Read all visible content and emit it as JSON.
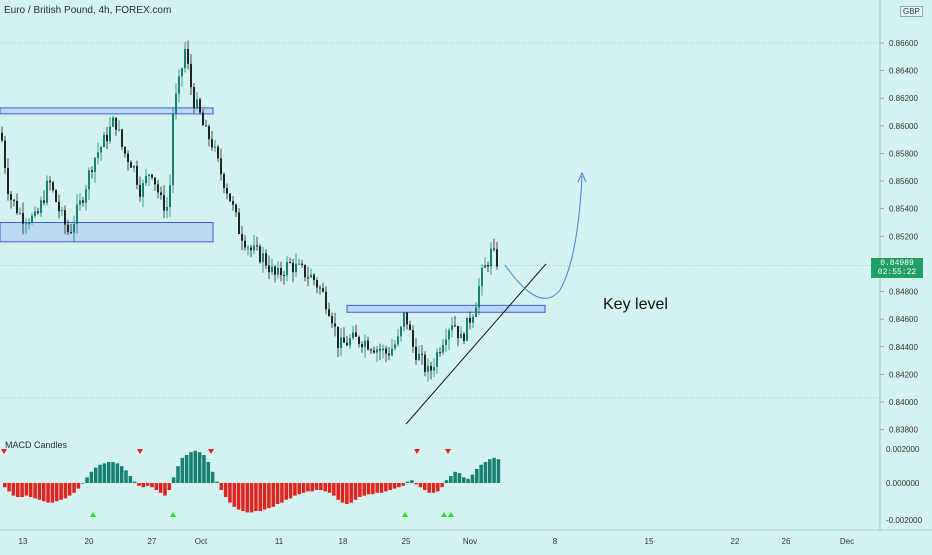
{
  "title": "Euro / British Pound, 4h, FOREX.com",
  "currency_badge": "GBP",
  "current_price": "0.84989",
  "countdown": "02:55:22",
  "annotation": "Key level",
  "indicator": {
    "name": "MACD Candles",
    "yticks": [
      "0.002000",
      "0.000000",
      "-0.002000"
    ]
  },
  "chart_data": {
    "type": "candlestick",
    "symbol": "EURGBP",
    "timeframe": "4h",
    "y_range": [
      0.8375,
      0.8676
    ],
    "y_ticks": [
      0.866,
      0.864,
      0.862,
      0.86,
      0.858,
      0.856,
      0.854,
      0.852,
      0.848,
      0.846,
      0.844,
      0.842,
      0.84,
      0.838
    ],
    "y_tick_labels": [
      "0.86600",
      "0.86400",
      "0.86200",
      "0.86000",
      "0.85800",
      "0.85600",
      "0.85400",
      "0.85200",
      "0.84800",
      "0.84600",
      "0.84400",
      "0.84200",
      "0.84000",
      "0.83800"
    ],
    "x_tick_labels": [
      "13",
      "20",
      "27",
      "Oct",
      "11",
      "18",
      "25",
      "Nov",
      "8",
      "15",
      "22",
      "26",
      "Dec"
    ],
    "price_path": [
      [
        0,
        0.8595
      ],
      [
        8,
        0.855
      ],
      [
        20,
        0.8535
      ],
      [
        35,
        0.8532
      ],
      [
        48,
        0.856
      ],
      [
        60,
        0.8535
      ],
      [
        68,
        0.8522
      ],
      [
        80,
        0.8545
      ],
      [
        92,
        0.8575
      ],
      [
        104,
        0.859
      ],
      [
        114,
        0.8605
      ],
      [
        122,
        0.8582
      ],
      [
        132,
        0.8572
      ],
      [
        140,
        0.8552
      ],
      [
        150,
        0.857
      ],
      [
        160,
        0.8545
      ],
      [
        168,
        0.854
      ],
      [
        172,
        0.861
      ],
      [
        178,
        0.863
      ],
      [
        184,
        0.8655
      ],
      [
        192,
        0.862
      ],
      [
        198,
        0.861
      ],
      [
        204,
        0.8595
      ],
      [
        210,
        0.859
      ],
      [
        218,
        0.857
      ],
      [
        228,
        0.855
      ],
      [
        238,
        0.8525
      ],
      [
        250,
        0.851
      ],
      [
        262,
        0.8505
      ],
      [
        275,
        0.849
      ],
      [
        288,
        0.85
      ],
      [
        300,
        0.8495
      ],
      [
        312,
        0.849
      ],
      [
        322,
        0.8478
      ],
      [
        330,
        0.8465
      ],
      [
        338,
        0.844
      ],
      [
        350,
        0.8445
      ],
      [
        362,
        0.8445
      ],
      [
        374,
        0.844
      ],
      [
        386,
        0.8435
      ],
      [
        398,
        0.8445
      ],
      [
        404,
        0.8465
      ],
      [
        412,
        0.844
      ],
      [
        420,
        0.843
      ],
      [
        428,
        0.842
      ],
      [
        436,
        0.8435
      ],
      [
        444,
        0.845
      ],
      [
        452,
        0.846
      ],
      [
        460,
        0.8445
      ],
      [
        466,
        0.8455
      ],
      [
        474,
        0.847
      ],
      [
        480,
        0.849
      ],
      [
        490,
        0.8508
      ],
      [
        498,
        0.85
      ]
    ],
    "horizontal_lines": [
      0.866,
      0.8499,
      0.8403
    ],
    "zones": [
      {
        "top": 0.8613,
        "bottom": 0.8609
      },
      {
        "top": 0.853,
        "bottom": 0.8516
      },
      {
        "top": 0.847,
        "bottom": 0.8465
      }
    ],
    "trendline": [
      [
        0.8384,
        0.85
      ]
    ],
    "projection": [
      0.85,
      0.8478,
      0.8566
    ],
    "macd_histogram": [
      -0.0003,
      -0.0006,
      -0.0009,
      -0.001,
      -0.001,
      -0.0009,
      -0.001,
      -0.0011,
      -0.0012,
      -0.0013,
      -0.0014,
      -0.0014,
      -0.0013,
      -0.0012,
      -0.0011,
      -0.0009,
      -0.0007,
      -0.0004,
      0.0,
      0.0004,
      0.0008,
      0.0011,
      0.0013,
      0.0014,
      0.0015,
      0.0015,
      0.0014,
      0.0012,
      0.0009,
      0.0005,
      0.0001,
      -0.0002,
      -0.0003,
      -0.0002,
      -0.0003,
      -0.0005,
      -0.0007,
      -0.0009,
      -0.0005,
      0.0004,
      0.0012,
      0.0018,
      0.002,
      0.0022,
      0.0023,
      0.0022,
      0.002,
      0.0015,
      0.0008,
      0.0001,
      -0.0005,
      -0.001,
      -0.0014,
      -0.0017,
      -0.0019,
      -0.002,
      -0.0021,
      -0.0021,
      -0.002,
      -0.002,
      -0.0019,
      -0.0018,
      -0.0017,
      -0.0015,
      -0.0014,
      -0.0012,
      -0.0011,
      -0.0009,
      -0.0008,
      -0.0007,
      -0.0006,
      -0.0006,
      -0.0005,
      -0.0005,
      -0.0006,
      -0.0007,
      -0.0009,
      -0.0012,
      -0.0014,
      -0.0015,
      -0.0014,
      -0.0012,
      -0.001,
      -0.0009,
      -0.0008,
      -0.0008,
      -0.0007,
      -0.0007,
      -0.0006,
      -0.0005,
      -0.0004,
      -0.0003,
      -0.0002,
      0.0001,
      0.0002,
      -0.0001,
      -0.0003,
      -0.0005,
      -0.0007,
      -0.0007,
      -0.0006,
      -0.0003,
      0.0002,
      0.0005,
      0.0008,
      0.0007,
      0.0004,
      0.0003,
      0.0006,
      0.001,
      0.0013,
      0.0015,
      0.0017,
      0.0018,
      0.0017
    ],
    "macd_signals_down_x": [
      4,
      140,
      211,
      417,
      448
    ],
    "macd_signals_up_x": [
      93,
      173,
      405,
      444,
      451
    ]
  },
  "colors": {
    "background": "#d4f3f0",
    "bull": "#17806f",
    "bear": "#222222",
    "zone_fill": "#bcd9f3",
    "zone_stroke": "#3b5bd9",
    "macd_pos": "#17806f",
    "macd_neg": "#e0231f",
    "projection": "#4a79d6",
    "price_tag": "#1f9f63"
  }
}
